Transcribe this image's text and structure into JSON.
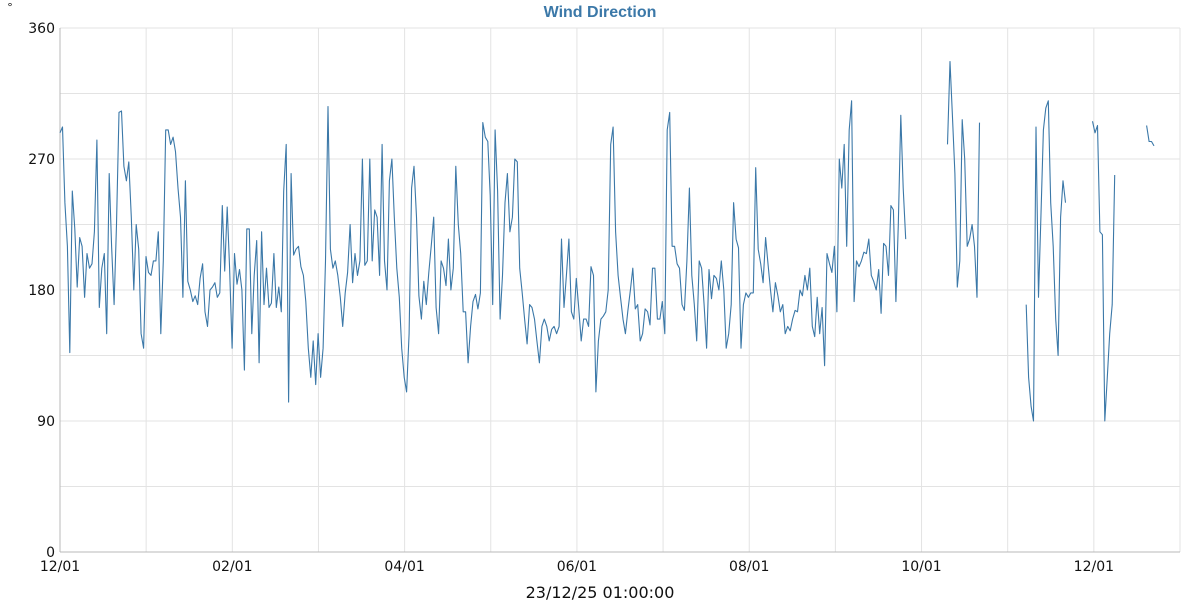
{
  "chart_data": {
    "type": "line",
    "title": "Wind Direction",
    "ylabel": "°",
    "xlabel": "",
    "footer": "23/12/25 01:00:00",
    "x_tick_labels": [
      "12/01",
      "02/01",
      "04/01",
      "06/01",
      "08/01",
      "10/01",
      "12/01"
    ],
    "y_ticks": [
      0,
      90,
      180,
      270,
      360
    ],
    "ylim": [
      0,
      360
    ],
    "grid": true,
    "legend": "none",
    "series_color": "#3b78a8",
    "series": [
      {
        "values": [
          288,
          292,
          240,
          210,
          137,
          248,
          222,
          182,
          216,
          210,
          175,
          205,
          195,
          198,
          220,
          283,
          168,
          195,
          205,
          150,
          260,
          210,
          170,
          225,
          302,
          303,
          265,
          255,
          268,
          230,
          180,
          225,
          208,
          150,
          140,
          203,
          192,
          190,
          200,
          200,
          220,
          150,
          200,
          290,
          290,
          280,
          285,
          275,
          250,
          230,
          175,
          255,
          186,
          180,
          172,
          176,
          170,
          188,
          198,
          165,
          155,
          180,
          182,
          185,
          175,
          178,
          238,
          193,
          237,
          195,
          140,
          205,
          184,
          194,
          180,
          125,
          222,
          222,
          150,
          190,
          214,
          130,
          220,
          170,
          195,
          168,
          171,
          205,
          168,
          182,
          165,
          248,
          280,
          103,
          260,
          204,
          208,
          210,
          196,
          190,
          172,
          140,
          120,
          145,
          115,
          150,
          120,
          140,
          200,
          306,
          208,
          195,
          200,
          190,
          175,
          155,
          178,
          192,
          225,
          185,
          205,
          190,
          200,
          270,
          197,
          200,
          270,
          200,
          235,
          230,
          190,
          280,
          200,
          180,
          255,
          270,
          230,
          195,
          175,
          140,
          120,
          110,
          150,
          250,
          265,
          230,
          176,
          160,
          186,
          170,
          192,
          210,
          230,
          168,
          150,
          200,
          195,
          183,
          215,
          180,
          195,
          265,
          225,
          205,
          165,
          165,
          130,
          155,
          172,
          177,
          167,
          178,
          295,
          285,
          282,
          245,
          170,
          290,
          248,
          160,
          190,
          240,
          260,
          220,
          230,
          270,
          268,
          195,
          178,
          160,
          143,
          170,
          168,
          160,
          145,
          130,
          155,
          160,
          155,
          145,
          153,
          155,
          150,
          155,
          215,
          168,
          190,
          215,
          165,
          160,
          188,
          168,
          145,
          160,
          160,
          155,
          196,
          190,
          110,
          145,
          160,
          162,
          165,
          180,
          280,
          292,
          220,
          190,
          175,
          160,
          150,
          166,
          180,
          195,
          167,
          170,
          145,
          150,
          167,
          165,
          156,
          195,
          195,
          160,
          160,
          172,
          150,
          290,
          302,
          210,
          210,
          198,
          195,
          170,
          166,
          200,
          250,
          190,
          170,
          145,
          200,
          195,
          170,
          140,
          194,
          174,
          190,
          188,
          180,
          200,
          180,
          140,
          150,
          170,
          240,
          215,
          209,
          140,
          170,
          178,
          175,
          178,
          178,
          264,
          208,
          198,
          185,
          216,
          198,
          180,
          165,
          185,
          176,
          165,
          170,
          150,
          155,
          152,
          160,
          166,
          165,
          180,
          176,
          190,
          180,
          195,
          155,
          148,
          175,
          150,
          168,
          128,
          205,
          198,
          192,
          210,
          165,
          270,
          250,
          280,
          210,
          290,
          310,
          172,
          200,
          196,
          200,
          206,
          205,
          215,
          190,
          186,
          180,
          194,
          164,
          212,
          210,
          190,
          238,
          235,
          172,
          225,
          300,
          250,
          215,
          null,
          null,
          null,
          null,
          null,
          null,
          null,
          null,
          null,
          null,
          null,
          null,
          null,
          null,
          null,
          null,
          280,
          337,
          300,
          260,
          182,
          200,
          297,
          270,
          210,
          215,
          225,
          210,
          175,
          295,
          null,
          null,
          null,
          null,
          null,
          null,
          null,
          null,
          null,
          null,
          null,
          null,
          null,
          null,
          null,
          null,
          null,
          null,
          170,
          120,
          100,
          90,
          292,
          175,
          230,
          290,
          305,
          310,
          240,
          210,
          160,
          135,
          230,
          255,
          240,
          null,
          null,
          null,
          null,
          null,
          null,
          null,
          null,
          null,
          null,
          296,
          288,
          293,
          220,
          218,
          90,
          120,
          150,
          170,
          259,
          null,
          null,
          null,
          null,
          null,
          null,
          null,
          null,
          null,
          null,
          null,
          null,
          293,
          282,
          282,
          279
        ]
      }
    ]
  }
}
